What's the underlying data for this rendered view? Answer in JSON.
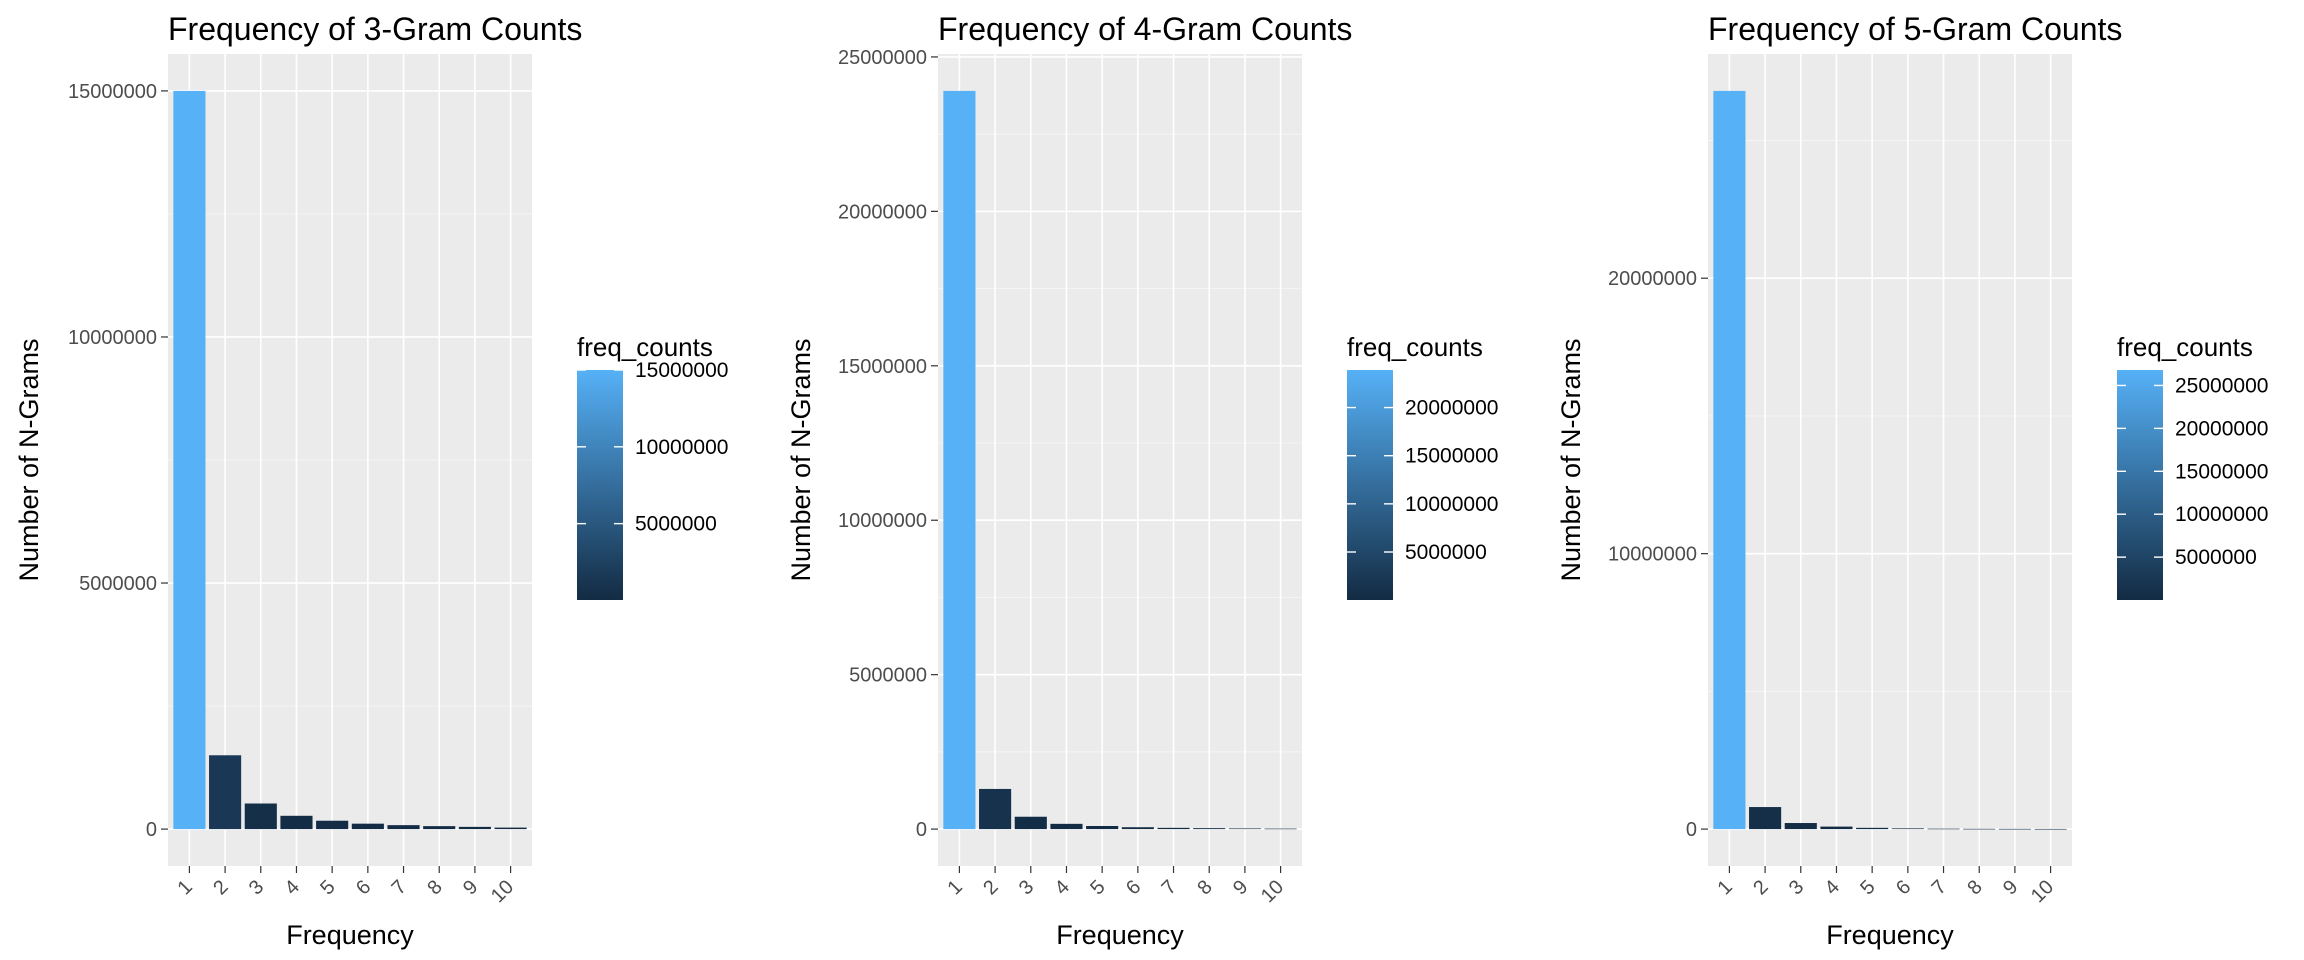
{
  "chart_data": [
    {
      "type": "bar",
      "title": "Frequency of 3-Gram Counts",
      "xlabel": "Frequency",
      "ylabel": "Number of N-Grams",
      "categories": [
        "1",
        "2",
        "3",
        "4",
        "5",
        "6",
        "7",
        "8",
        "9",
        "10"
      ],
      "values": [
        15000000,
        1500000,
        520000,
        270000,
        170000,
        110000,
        80000,
        60000,
        45000,
        30000
      ],
      "ylim": [
        -750000,
        15750000
      ],
      "yticks": [
        0,
        5000000,
        10000000,
        15000000
      ],
      "yticklabels": [
        "0",
        "5000000",
        "10000000",
        "15000000"
      ],
      "grid": true,
      "legend": {
        "title": "freq_counts",
        "placement": "right",
        "range": [
          30000,
          15000000
        ],
        "ticks": [
          5000000,
          10000000,
          15000000
        ],
        "ticklabels": [
          "5000000",
          "10000000",
          "15000000"
        ]
      }
    },
    {
      "type": "bar",
      "title": "Frequency of 4-Gram Counts",
      "xlabel": "Frequency",
      "ylabel": "Number of N-Grams",
      "categories": [
        "1",
        "2",
        "3",
        "4",
        "5",
        "6",
        "7",
        "8",
        "9",
        "10"
      ],
      "values": [
        23900000,
        1300000,
        400000,
        170000,
        100000,
        60000,
        40000,
        30000,
        20000,
        15000
      ],
      "ylim": [
        -1195000,
        25095000
      ],
      "yticks": [
        0,
        5000000,
        10000000,
        15000000,
        20000000,
        25000000
      ],
      "yticklabels": [
        "0",
        "5000000",
        "10000000",
        "15000000",
        "20000000",
        "25000000"
      ],
      "grid": true,
      "legend": {
        "title": "freq_counts",
        "placement": "right",
        "range": [
          15000,
          23900000
        ],
        "ticks": [
          5000000,
          10000000,
          15000000,
          20000000
        ],
        "ticklabels": [
          "5000000",
          "10000000",
          "15000000",
          "20000000"
        ]
      }
    },
    {
      "type": "bar",
      "title": "Frequency of 5-Gram Counts",
      "xlabel": "Frequency",
      "ylabel": "Number of N-Grams",
      "categories": [
        "1",
        "2",
        "3",
        "4",
        "5",
        "6",
        "7",
        "8",
        "9",
        "10"
      ],
      "values": [
        26800000,
        800000,
        220000,
        90000,
        45000,
        25000,
        15000,
        10000,
        8000,
        6000
      ],
      "ylim": [
        -1340000,
        28140000
      ],
      "yticks": [
        0,
        10000000,
        20000000
      ],
      "yticklabels": [
        "0",
        "10000000",
        "20000000"
      ],
      "grid": true,
      "legend": {
        "title": "freq_counts",
        "placement": "right",
        "range": [
          6000,
          26800000
        ],
        "ticks": [
          5000000,
          10000000,
          15000000,
          20000000,
          25000000
        ],
        "ticklabels": [
          "5000000",
          "10000000",
          "15000000",
          "20000000",
          "25000000"
        ]
      }
    }
  ],
  "colors": {
    "low": "#132B43",
    "high": "#56B1F7",
    "panel_background": "#EBEBEB",
    "grid": "#FFFFFF"
  }
}
